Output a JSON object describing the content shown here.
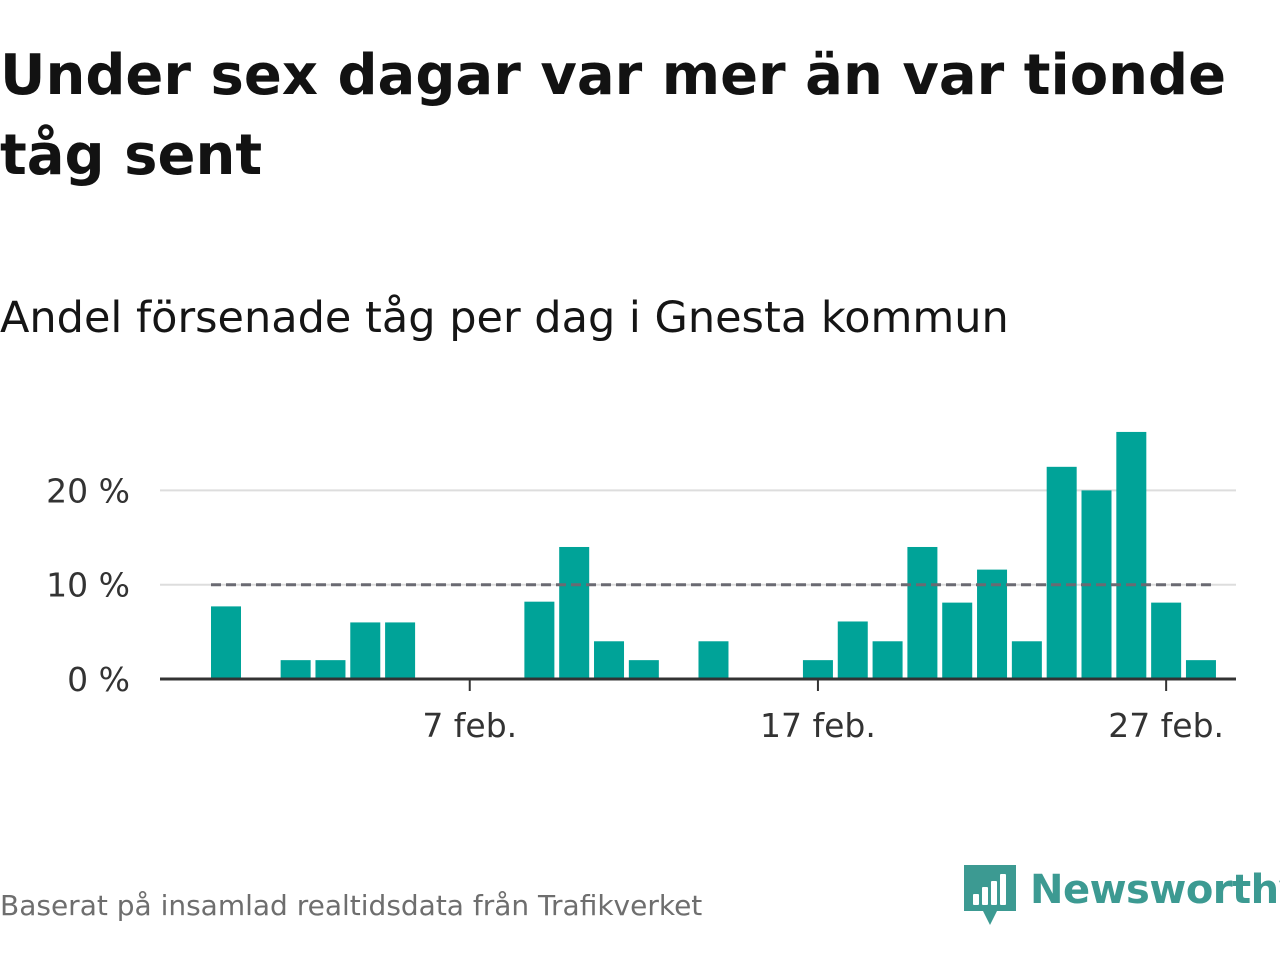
{
  "title": "Under sex dagar var mer än var tionde tåg sent",
  "subtitle": "Andel försenade tåg per dag i Gnesta kommun",
  "source": "Baserat på insamlad realtidsdata från Trafikverket",
  "brand": {
    "name": "Newsworthy",
    "icon": "newsworthy-bar-chart-logo",
    "color": "#3c9a92"
  },
  "colors": {
    "bar": "#00a398",
    "threshold": "#6a6a72",
    "grid": "#dddddd",
    "axis": "#333333"
  },
  "chart_data": {
    "type": "bar",
    "title": "Andel försenade tåg per dag i Gnesta kommun",
    "xlabel": "",
    "ylabel": "",
    "x": [
      "2025-01-31",
      "2025-02-01",
      "2025-02-02",
      "2025-02-03",
      "2025-02-04",
      "2025-02-05",
      "2025-02-06",
      "2025-02-07",
      "2025-02-08",
      "2025-02-09",
      "2025-02-10",
      "2025-02-11",
      "2025-02-12",
      "2025-02-13",
      "2025-02-14",
      "2025-02-15",
      "2025-02-16",
      "2025-02-17",
      "2025-02-18",
      "2025-02-19",
      "2025-02-20",
      "2025-02-21",
      "2025-02-22",
      "2025-02-23",
      "2025-02-24",
      "2025-02-25",
      "2025-02-26",
      "2025-02-27",
      "2025-02-28"
    ],
    "values": [
      7.7,
      0,
      2,
      2,
      6,
      6,
      0,
      0,
      0,
      8.2,
      14,
      4,
      2,
      0,
      4,
      0,
      0,
      2,
      6.1,
      4,
      14,
      8.1,
      11.6,
      4,
      22.5,
      20,
      26.2,
      8.1,
      2
    ],
    "threshold": 10,
    "ylim": [
      0,
      26.5
    ],
    "yticks": [
      0,
      10,
      20
    ],
    "ytick_labels": [
      "0 %",
      "10 %",
      "20 %"
    ],
    "xticks": [
      "2025-02-07",
      "2025-02-17",
      "2025-02-27"
    ],
    "xtick_labels": [
      "7 feb.",
      "17 feb.",
      "27 feb."
    ],
    "grid": true,
    "legend": "none"
  }
}
